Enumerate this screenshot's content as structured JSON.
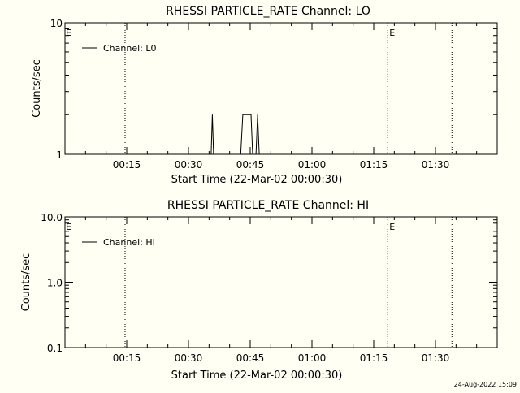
{
  "footer": {
    "timestamp": "24-Aug-2022 15:09"
  },
  "chart_data": [
    {
      "type": "line",
      "title": "RHESSI PARTICLE_RATE Channel: LO",
      "xlabel": "Start Time (22-Mar-02 00:00:30)",
      "ylabel": "Counts/sec",
      "yscale": "log",
      "ylim": [
        1,
        10
      ],
      "ytick_labels": [
        "1",
        "10"
      ],
      "ytick_values": [
        1,
        10
      ],
      "xlim_minutes": [
        0,
        105
      ],
      "xtick_labels": [
        "00:15",
        "00:30",
        "00:45",
        "01:00",
        "01:15",
        "01:30"
      ],
      "xtick_minutes": [
        15,
        30,
        45,
        60,
        75,
        90
      ],
      "grid": false,
      "legend_position": "top-left",
      "series": [
        {
          "name": "Channel: L0",
          "x_minutes": [
            35.5,
            35.8,
            36.1,
            42.7,
            43.2,
            43.6,
            44.8,
            45.2,
            45.6,
            46.4,
            46.8,
            47.2
          ],
          "values": [
            1,
            2,
            1,
            1,
            2,
            2,
            2,
            2,
            1,
            1,
            2,
            1
          ]
        }
      ],
      "markers": [
        {
          "minute": 14.6,
          "style": "dotted",
          "label": ""
        },
        {
          "minute": 78.4,
          "style": "dotted",
          "label": "E"
        },
        {
          "minute": 94.0,
          "style": "dotted",
          "label": ""
        }
      ],
      "left_label": "E"
    },
    {
      "type": "line",
      "title": "RHESSI PARTICLE_RATE Channel: HI",
      "xlabel": "Start Time (22-Mar-02 00:00:30)",
      "ylabel": "Counts/sec",
      "yscale": "log",
      "ylim": [
        0.1,
        10
      ],
      "ytick_labels": [
        "0.1",
        "1.0",
        "10.0"
      ],
      "ytick_values": [
        0.1,
        1,
        10
      ],
      "xlim_minutes": [
        0,
        105
      ],
      "xtick_labels": [
        "00:15",
        "00:30",
        "00:45",
        "01:00",
        "01:15",
        "01:30"
      ],
      "xtick_minutes": [
        15,
        30,
        45,
        60,
        75,
        90
      ],
      "grid": false,
      "legend_position": "top-left",
      "series": [
        {
          "name": "Channel: HI",
          "x_minutes": [],
          "values": []
        }
      ],
      "markers": [
        {
          "minute": 14.6,
          "style": "dotted",
          "label": ""
        },
        {
          "minute": 78.4,
          "style": "dotted",
          "label": "E"
        },
        {
          "minute": 94.0,
          "style": "dotted",
          "label": ""
        }
      ],
      "left_label": "E"
    }
  ]
}
